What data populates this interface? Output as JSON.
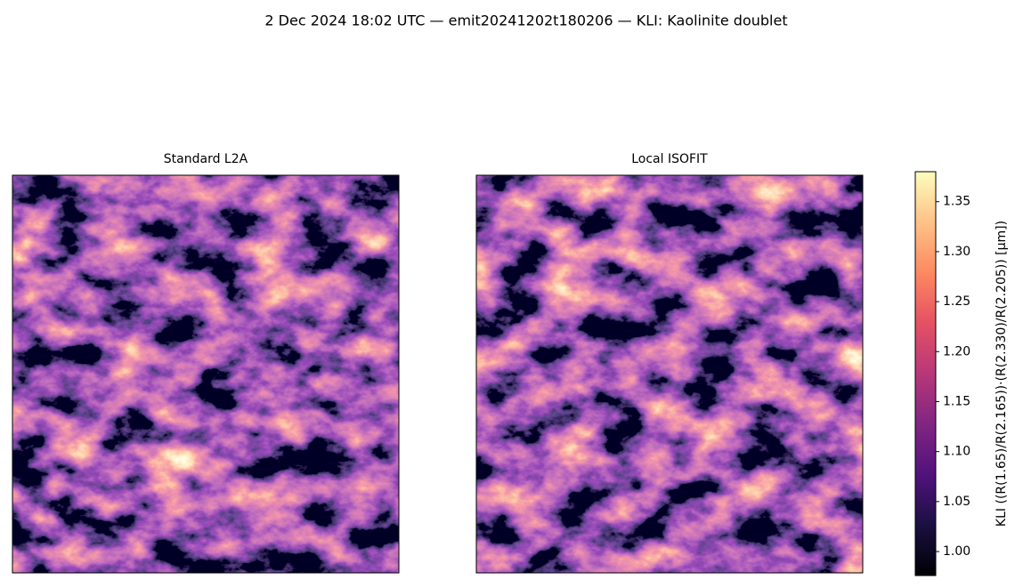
{
  "chart_data": {
    "type": "image",
    "title": "2 Dec 2024 18:02 UTC — emit20241202t180206 — KLI: Kaolinite doublet",
    "panels": [
      {
        "title": "Standard L2A"
      },
      {
        "title": "Local ISOFIT"
      }
    ],
    "colorbar": {
      "label": "KLI  ((R(1.65)/R(2.165))·(R(2.330)/R(2.205))  [µm])",
      "clim": [
        0.976,
        1.38
      ],
      "ticks": [
        {
          "value": 1,
          "label": "1.00"
        },
        1.05,
        {
          "value": 1.1,
          "label": "1.10"
        },
        1.15,
        {
          "value": 1.2,
          "label": "1.20"
        },
        1.25,
        {
          "value": 1.3,
          "label": "1.30"
        },
        1.35
      ]
    }
  }
}
